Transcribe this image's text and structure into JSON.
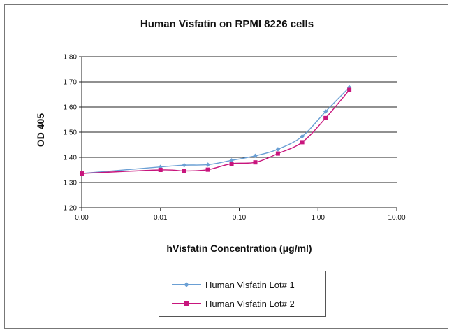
{
  "chart_data": {
    "type": "line",
    "title": "Human Visfatin on RPMI 8226 cells",
    "xlabel": "hVisfatin Concentration (μg/ml)",
    "ylabel": "OD 405",
    "x_scale": "log",
    "x_tick_labels": [
      "0.00",
      "0.01",
      "0.10",
      "1.00",
      "10.00"
    ],
    "y_tick_labels": [
      "1.20",
      "1.30",
      "1.40",
      "1.50",
      "1.60",
      "1.70",
      "1.80"
    ],
    "ylim": [
      1.2,
      1.8
    ],
    "grid": "horizontal",
    "legend_position": "bottom",
    "x": [
      0.001,
      0.01,
      0.02,
      0.04,
      0.08,
      0.16,
      0.31,
      0.63,
      1.25,
      2.5
    ],
    "series": [
      {
        "name": "Human Visfatin Lot# 1",
        "color": "#6a9fd4",
        "marker": "diamond",
        "values": [
          1.336,
          1.362,
          1.369,
          1.371,
          1.388,
          1.406,
          1.432,
          1.483,
          1.582,
          1.678
        ]
      },
      {
        "name": "Human Visfatin Lot# 2",
        "color": "#c8157d",
        "marker": "square",
        "values": [
          1.336,
          1.35,
          1.346,
          1.351,
          1.375,
          1.38,
          1.415,
          1.46,
          1.556,
          1.668
        ]
      }
    ]
  }
}
